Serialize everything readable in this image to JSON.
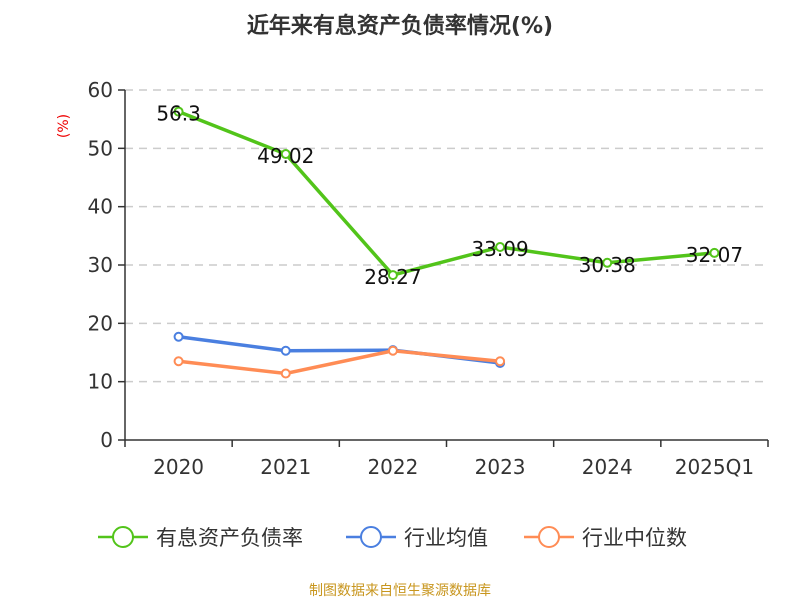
{
  "chart_data": {
    "type": "line",
    "title": "近年来有息资产负债率情况(%)",
    "ylabel": "(%)",
    "ylim": [
      0,
      60
    ],
    "yticks": [
      0,
      10,
      20,
      30,
      40,
      50,
      60
    ],
    "categories": [
      "2020",
      "2021",
      "2022",
      "2023",
      "2024",
      "2025Q1"
    ],
    "grid": true,
    "legend_position": "bottom",
    "series": [
      {
        "name": "有息资产负债率",
        "color": "#52c41a",
        "values": [
          56.3,
          49.02,
          28.27,
          33.09,
          30.38,
          32.07
        ],
        "labels": [
          "56.3",
          "49.02",
          "28.27",
          "33.09",
          "30.38",
          "32.07"
        ]
      },
      {
        "name": "行业均值",
        "color": "#4a7fe0",
        "values": [
          17.7,
          15.3,
          15.4,
          13.2,
          null,
          null
        ]
      },
      {
        "name": "行业中位数",
        "color": "#ff8c55",
        "values": [
          13.5,
          11.4,
          15.3,
          13.5,
          null,
          null
        ]
      }
    ]
  },
  "source": "制图数据来自恒生聚源数据库"
}
